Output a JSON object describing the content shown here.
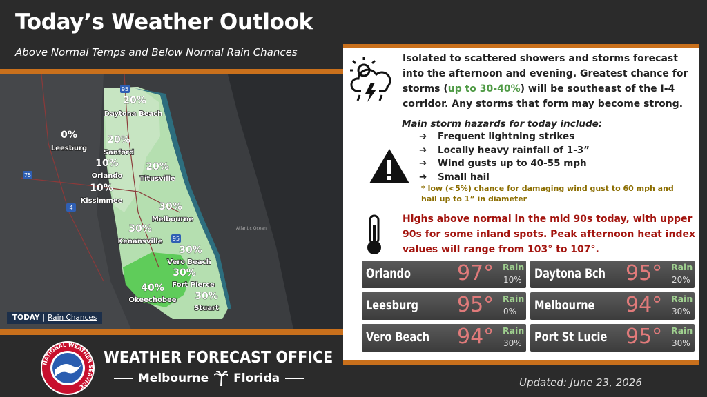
{
  "header": {
    "title": "Today’s Weather Outlook",
    "subtitle": "Above Normal Temps and Below Normal Rain Chances"
  },
  "map": {
    "legend": {
      "day": "TODAY",
      "label": "Rain Chances"
    },
    "ocean_label": "Atlantic Ocean",
    "highways": [
      "95",
      "75",
      "4",
      "95"
    ],
    "cities": [
      {
        "pct": "20%",
        "name": "Daytona Beach"
      },
      {
        "pct": "0%",
        "name": "Leesburg"
      },
      {
        "pct": "20%",
        "name": "Sanford"
      },
      {
        "pct": "10%",
        "name": "Orlando"
      },
      {
        "pct": "20%",
        "name": "Titusville"
      },
      {
        "pct": "10%",
        "name": "Kissimmee"
      },
      {
        "pct": "30%",
        "name": "Melbourne"
      },
      {
        "pct": "30%",
        "name": "Kenansville"
      },
      {
        "pct": "30%",
        "name": "Vero Beach"
      },
      {
        "pct": "30%",
        "name": "Fort Pierce"
      },
      {
        "pct": "40%",
        "name": "Okeechobee"
      },
      {
        "pct": "30%",
        "name": "Stuart"
      }
    ]
  },
  "storms": {
    "text_before": "Isolated to scattered showers and storms forecast into the afternoon and evening. Greatest chance for storms (",
    "highlight": "up to 30-40%",
    "text_after": ") will be southeast of the I-4 corridor. Any storms that form may become strong."
  },
  "hazards": {
    "heading": "Main storm hazards for today include:",
    "items": [
      "Frequent lightning strikes",
      "Locally heavy rainfall of 1-3”",
      "Wind gusts up to 40-55 mph",
      "Small hail"
    ],
    "note": "* low (<5%) chance for damaging wind gust to 60 mph and hail up to 1” in diameter"
  },
  "heat": {
    "text": "Highs above normal in the mid 90s today, with upper 90s for some inland spots. Peak afternoon heat index values will range from 103° to 107°."
  },
  "cards": [
    {
      "city": "Orlando",
      "temp": "97°",
      "rain_label": "Rain",
      "rain": "10%"
    },
    {
      "city": "Daytona Bch",
      "temp": "95°",
      "rain_label": "Rain",
      "rain": "20%"
    },
    {
      "city": "Leesburg",
      "temp": "95°",
      "rain_label": "Rain",
      "rain": "0%"
    },
    {
      "city": "Melbourne",
      "temp": "94°",
      "rain_label": "Rain",
      "rain": "30%"
    },
    {
      "city": "Vero Beach",
      "temp": "94°",
      "rain_label": "Rain",
      "rain": "30%"
    },
    {
      "city": "Port St Lucie",
      "temp": "95°",
      "rain_label": "Rain",
      "rain": "30%"
    }
  ],
  "footer": {
    "logo_text": "NATIONAL WEATHER SERVICE",
    "office": "WEATHER FORECAST OFFICE",
    "city": "Melbourne",
    "state": "Florida",
    "updated": "Updated: June 23, 2026"
  }
}
